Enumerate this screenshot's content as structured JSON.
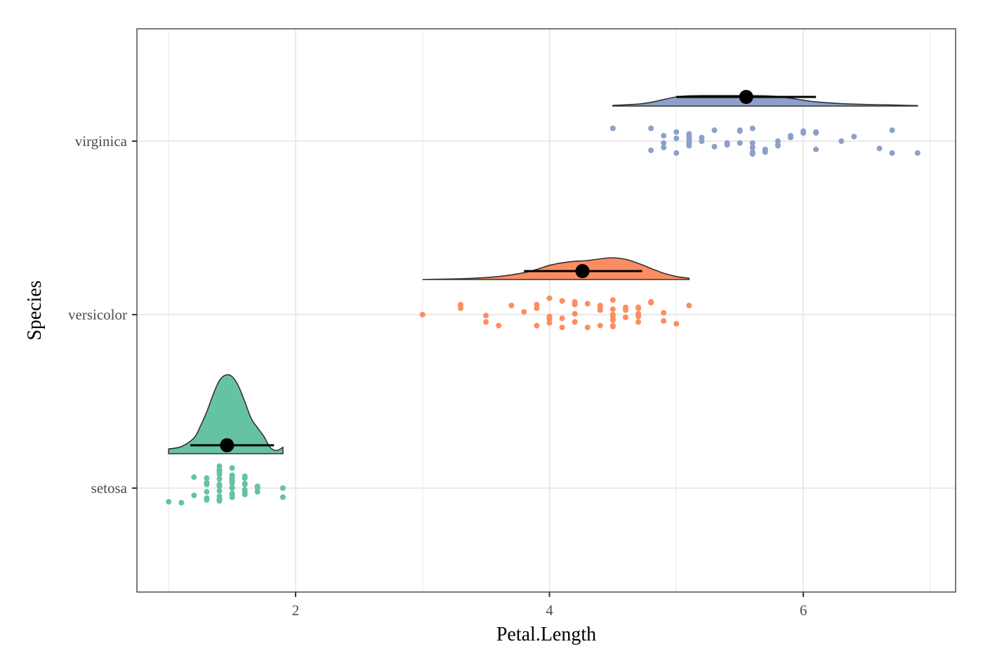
{
  "chart_data": {
    "type": "raincloud",
    "xlabel": "Petal.Length",
    "ylabel": "Species",
    "xlim": [
      0.75,
      7.2
    ],
    "x_ticks": [
      2,
      4,
      6
    ],
    "x_tick_labels": [
      "2",
      "4",
      "6"
    ],
    "categories": [
      "setosa",
      "versicolor",
      "virginica"
    ],
    "grid": true,
    "legend": "none",
    "series": [
      {
        "name": "setosa",
        "color": "#66c2a5",
        "mean": 1.46,
        "interval": [
          1.17,
          1.83
        ],
        "density": [
          [
            1.0,
            0.06
          ],
          [
            1.1,
            0.09
          ],
          [
            1.2,
            0.2
          ],
          [
            1.25,
            0.35
          ],
          [
            1.3,
            0.53
          ],
          [
            1.35,
            0.75
          ],
          [
            1.4,
            0.93
          ],
          [
            1.45,
            1.0
          ],
          [
            1.5,
            0.98
          ],
          [
            1.55,
            0.86
          ],
          [
            1.6,
            0.66
          ],
          [
            1.65,
            0.45
          ],
          [
            1.7,
            0.33
          ],
          [
            1.75,
            0.22
          ],
          [
            1.8,
            0.08
          ],
          [
            1.85,
            0.04
          ],
          [
            1.9,
            0.08
          ]
        ],
        "points": [
          [
            1.4,
            0.15
          ],
          [
            1.4,
            0.1
          ],
          [
            1.3,
            0.06
          ],
          [
            1.5,
            0.14
          ],
          [
            1.4,
            0.2
          ],
          [
            1.7,
            0.02
          ],
          [
            1.4,
            0.24
          ],
          [
            1.5,
            0.08
          ],
          [
            1.4,
            -0.12
          ],
          [
            1.5,
            -0.06
          ],
          [
            1.5,
            0.0
          ],
          [
            1.6,
            0.05
          ],
          [
            1.4,
            -0.03
          ],
          [
            1.1,
            -0.16
          ],
          [
            1.2,
            0.12
          ],
          [
            1.5,
            0.13
          ],
          [
            1.3,
            -0.11
          ],
          [
            1.4,
            0.04
          ],
          [
            1.7,
            -0.04
          ],
          [
            1.5,
            -0.1
          ],
          [
            1.7,
            0.01
          ],
          [
            1.5,
            0.06
          ],
          [
            1.0,
            -0.15
          ],
          [
            1.7,
            0.0
          ],
          [
            1.9,
            -0.1
          ],
          [
            1.6,
            0.11
          ],
          [
            1.6,
            -0.07
          ],
          [
            1.5,
            0.06
          ],
          [
            1.4,
            -0.13
          ],
          [
            1.6,
            0.13
          ],
          [
            1.6,
            -0.05
          ],
          [
            1.5,
            0.01
          ],
          [
            1.5,
            0.11
          ],
          [
            1.4,
            0.17
          ],
          [
            1.5,
            0.09
          ],
          [
            1.2,
            -0.08
          ],
          [
            1.3,
            0.04
          ],
          [
            1.4,
            -0.14
          ],
          [
            1.3,
            -0.13
          ],
          [
            1.5,
            -0.07
          ],
          [
            1.3,
            0.11
          ],
          [
            1.3,
            0.06
          ],
          [
            1.3,
            -0.04
          ],
          [
            1.6,
            -0.02
          ],
          [
            1.9,
            0.0
          ],
          [
            1.4,
            0.19
          ],
          [
            1.6,
            0.04
          ],
          [
            1.4,
            -0.09
          ],
          [
            1.5,
            0.22
          ],
          [
            1.4,
            0.02
          ]
        ]
      },
      {
        "name": "versicolor",
        "color": "#fc8d62",
        "mean": 4.26,
        "interval": [
          3.8,
          4.73
        ],
        "density": [
          [
            3.0,
            0.0
          ],
          [
            3.2,
            0.02
          ],
          [
            3.4,
            0.05
          ],
          [
            3.6,
            0.12
          ],
          [
            3.8,
            0.27
          ],
          [
            3.9,
            0.4
          ],
          [
            4.0,
            0.56
          ],
          [
            4.1,
            0.66
          ],
          [
            4.2,
            0.72
          ],
          [
            4.3,
            0.75
          ],
          [
            4.4,
            0.82
          ],
          [
            4.5,
            0.86
          ],
          [
            4.6,
            0.8
          ],
          [
            4.7,
            0.64
          ],
          [
            4.8,
            0.44
          ],
          [
            4.9,
            0.25
          ],
          [
            5.0,
            0.12
          ],
          [
            5.1,
            0.05
          ]
        ],
        "points": [
          [
            4.7,
            0.08
          ],
          [
            4.5,
            0.16
          ],
          [
            4.9,
            -0.07
          ],
          [
            4.0,
            -0.09
          ],
          [
            4.6,
            -0.03
          ],
          [
            4.5,
            0.06
          ],
          [
            4.7,
            -0.08
          ],
          [
            3.3,
            0.07
          ],
          [
            4.6,
            0.08
          ],
          [
            3.9,
            -0.12
          ],
          [
            3.5,
            -0.08
          ],
          [
            4.2,
            0.01
          ],
          [
            4.0,
            0.18
          ],
          [
            4.7,
            -0.02
          ],
          [
            3.6,
            -0.12
          ],
          [
            4.4,
            0.1
          ],
          [
            4.5,
            -0.13
          ],
          [
            4.1,
            -0.04
          ],
          [
            4.5,
            -0.03
          ],
          [
            3.9,
            0.11
          ],
          [
            4.8,
            0.14
          ],
          [
            4.0,
            -0.02
          ],
          [
            4.9,
            0.02
          ],
          [
            4.7,
            0.01
          ],
          [
            4.3,
            0.12
          ],
          [
            4.4,
            0.05
          ],
          [
            4.8,
            0.13
          ],
          [
            5.0,
            -0.1
          ],
          [
            4.5,
            -0.12
          ],
          [
            3.5,
            -0.01
          ],
          [
            3.8,
            0.03
          ],
          [
            3.7,
            0.1
          ],
          [
            3.9,
            0.07
          ],
          [
            5.1,
            0.1
          ],
          [
            4.5,
            -0.06
          ],
          [
            4.5,
            0.0
          ],
          [
            4.7,
            0.07
          ],
          [
            4.4,
            0.08
          ],
          [
            4.1,
            -0.14
          ],
          [
            4.0,
            -0.05
          ],
          [
            4.4,
            -0.12
          ],
          [
            4.6,
            0.05
          ],
          [
            4.0,
            -0.03
          ],
          [
            3.3,
            0.11
          ],
          [
            4.2,
            -0.08
          ],
          [
            4.2,
            0.14
          ],
          [
            4.2,
            0.11
          ],
          [
            4.3,
            -0.14
          ],
          [
            3.0,
            0.0
          ],
          [
            4.1,
            0.15
          ]
        ]
      },
      {
        "name": "virginica",
        "color": "#8da0cb",
        "mean": 5.55,
        "interval": [
          5.0,
          6.1
        ],
        "density": [
          [
            4.5,
            0.03
          ],
          [
            4.7,
            0.09
          ],
          [
            4.8,
            0.17
          ],
          [
            4.9,
            0.3
          ],
          [
            5.0,
            0.42
          ],
          [
            5.1,
            0.47
          ],
          [
            5.2,
            0.48
          ],
          [
            5.4,
            0.48
          ],
          [
            5.6,
            0.48
          ],
          [
            5.8,
            0.44
          ],
          [
            5.9,
            0.36
          ],
          [
            6.0,
            0.27
          ],
          [
            6.1,
            0.19
          ],
          [
            6.3,
            0.11
          ],
          [
            6.5,
            0.07
          ],
          [
            6.7,
            0.05
          ],
          [
            6.9,
            0.02
          ]
        ],
        "points": [
          [
            6.0,
            0.11
          ],
          [
            5.1,
            -0.01
          ],
          [
            5.9,
            0.06
          ],
          [
            5.6,
            -0.14
          ],
          [
            5.8,
            -0.04
          ],
          [
            6.6,
            -0.08
          ],
          [
            4.5,
            0.14
          ],
          [
            6.3,
            0.0
          ],
          [
            5.8,
            0.0
          ],
          [
            6.1,
            0.1
          ],
          [
            5.1,
            0.08
          ],
          [
            5.3,
            -0.06
          ],
          [
            5.5,
            -0.02
          ],
          [
            5.0,
            -0.13
          ],
          [
            5.1,
            0.06
          ],
          [
            5.3,
            0.12
          ],
          [
            5.5,
            0.12
          ],
          [
            6.7,
            0.12
          ],
          [
            6.9,
            -0.13
          ],
          [
            5.0,
            0.03
          ],
          [
            5.7,
            -0.09
          ],
          [
            4.9,
            -0.02
          ],
          [
            6.7,
            -0.13
          ],
          [
            4.9,
            -0.07
          ],
          [
            5.7,
            -0.11
          ],
          [
            6.0,
            0.09
          ],
          [
            4.8,
            -0.1
          ],
          [
            4.9,
            0.06
          ],
          [
            5.6,
            -0.13
          ],
          [
            5.8,
            -0.05
          ],
          [
            6.1,
            0.09
          ],
          [
            6.4,
            0.05
          ],
          [
            5.6,
            -0.07
          ],
          [
            5.1,
            -0.03
          ],
          [
            5.6,
            0.14
          ],
          [
            6.1,
            -0.09
          ],
          [
            5.6,
            -0.02
          ],
          [
            5.5,
            0.11
          ],
          [
            4.8,
            0.14
          ],
          [
            5.4,
            -0.04
          ],
          [
            5.6,
            -0.12
          ],
          [
            5.1,
            0.03
          ],
          [
            5.1,
            0.02
          ],
          [
            5.9,
            0.04
          ],
          [
            5.7,
            -0.12
          ],
          [
            5.2,
            0.0
          ],
          [
            5.0,
            0.1
          ],
          [
            5.2,
            0.04
          ],
          [
            5.4,
            -0.02
          ],
          [
            5.1,
            -0.05
          ]
        ]
      }
    ]
  }
}
